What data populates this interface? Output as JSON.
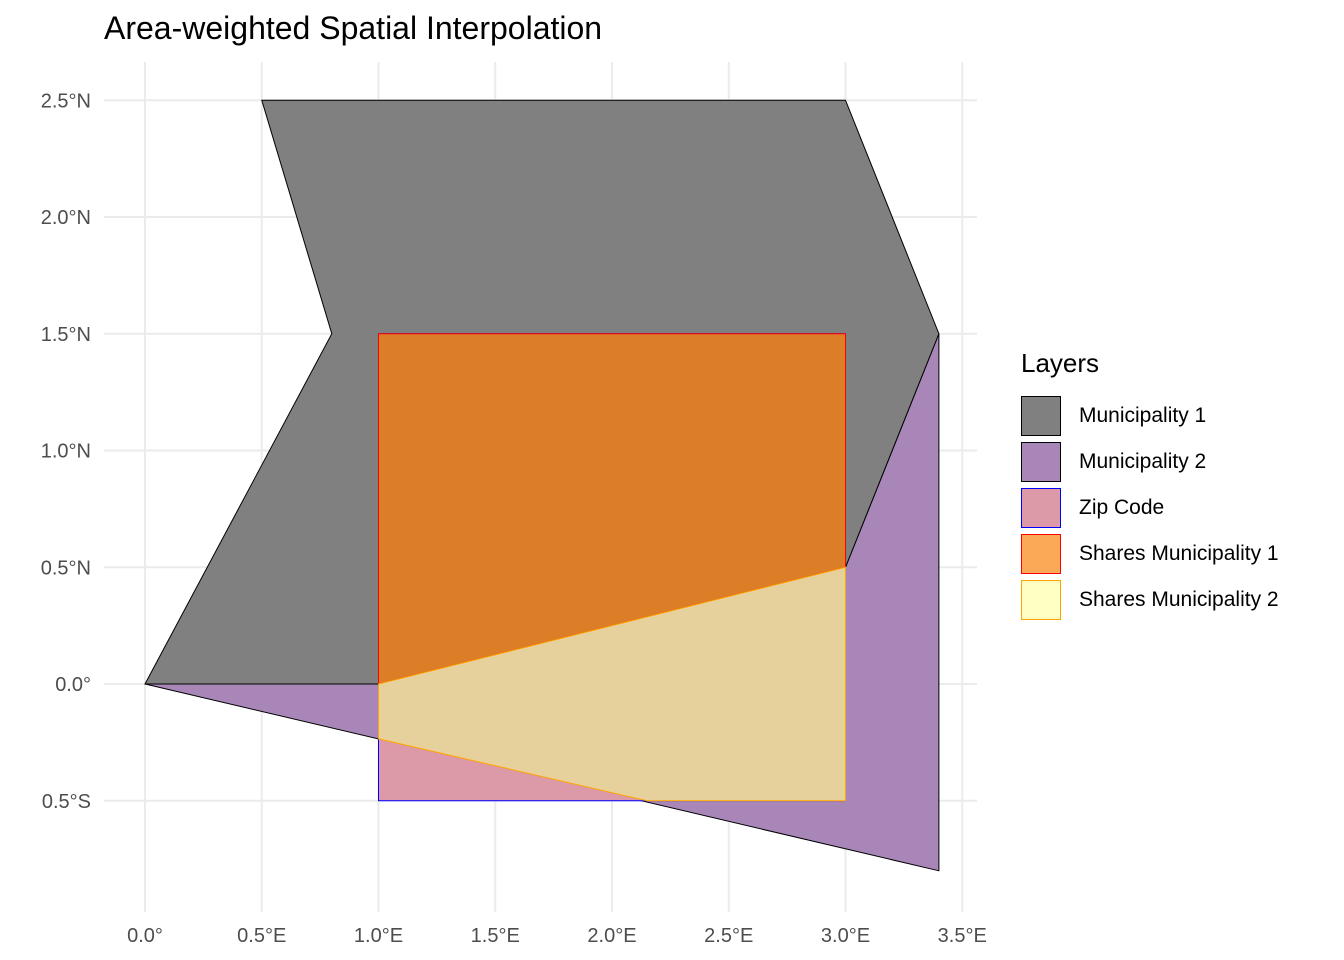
{
  "title": "Area-weighted Spatial Interpolation",
  "chart_data": {
    "type": "map",
    "title": "Area-weighted Spatial Interpolation",
    "xlim": [
      -0.1,
      3.55
    ],
    "ylim": [
      -0.95,
      2.65
    ],
    "x_ticks": [
      {
        "value": 0.0,
        "label": "0.0°"
      },
      {
        "value": 0.5,
        "label": "0.5°E"
      },
      {
        "value": 1.0,
        "label": "1.0°E"
      },
      {
        "value": 1.5,
        "label": "1.5°E"
      },
      {
        "value": 2.0,
        "label": "2.0°E"
      },
      {
        "value": 2.5,
        "label": "2.5°E"
      },
      {
        "value": 3.0,
        "label": "3.0°E"
      },
      {
        "value": 3.5,
        "label": "3.5°E"
      }
    ],
    "y_ticks": [
      {
        "value": -0.5,
        "label": "0.5°S"
      },
      {
        "value": 0.0,
        "label": "0.0°"
      },
      {
        "value": 0.5,
        "label": "0.5°N"
      },
      {
        "value": 1.0,
        "label": "1.0°N"
      },
      {
        "value": 1.5,
        "label": "1.5°N"
      },
      {
        "value": 2.0,
        "label": "2.0°N"
      },
      {
        "value": 2.5,
        "label": "2.5°N"
      }
    ],
    "grid": true,
    "legend_position": "right",
    "legend_title": "Layers",
    "layers": [
      {
        "name": "Municipality 2",
        "fill": "#a887b8",
        "stroke": "#000000",
        "coords": [
          [
            0,
            0
          ],
          [
            1,
            0
          ],
          [
            3,
            0.5
          ],
          [
            3.4,
            1.5
          ],
          [
            3.4,
            -0.8
          ],
          [
            0,
            0
          ]
        ]
      },
      {
        "name": "Municipality 1",
        "fill": "#808080",
        "stroke": "#000000",
        "coords": [
          [
            0,
            0
          ],
          [
            1,
            0
          ],
          [
            3,
            0.5
          ],
          [
            3.4,
            1.5
          ],
          [
            3,
            2.5
          ],
          [
            0.5,
            2.5
          ],
          [
            0.8,
            1.5
          ],
          [
            0,
            0
          ]
        ]
      },
      {
        "name": "Zip Code",
        "fill": "#dc9aa8",
        "stroke": "#0000ff",
        "coords": [
          [
            1,
            -0.5
          ],
          [
            3,
            -0.5
          ],
          [
            3,
            1.5
          ],
          [
            1,
            1.5
          ],
          [
            1,
            -0.5
          ]
        ]
      },
      {
        "name": "Shares Municipality 1",
        "fill": "#dc7e28",
        "stroke": "#ff0000",
        "coords": [
          [
            1,
            0
          ],
          [
            3,
            0.5
          ],
          [
            3,
            1.5
          ],
          [
            1,
            1.5
          ],
          [
            1,
            0
          ]
        ]
      },
      {
        "name": "Shares Municipality 2",
        "fill": "#e6d09c",
        "stroke": "#ffa500",
        "coords": [
          [
            1,
            0
          ],
          [
            3,
            0.5
          ],
          [
            3,
            -0.5
          ],
          [
            2.15,
            -0.5
          ],
          [
            1,
            -0.235
          ],
          [
            1,
            0
          ]
        ]
      }
    ],
    "legend": [
      {
        "label": "Municipality 1",
        "fill": "#808080",
        "stroke": "#000000"
      },
      {
        "label": "Municipality 2",
        "fill": "#a887b8",
        "stroke": "#000000"
      },
      {
        "label": "Zip Code",
        "fill": "#dc9aa8",
        "stroke": "#0000ff"
      },
      {
        "label": "Shares Municipality 1",
        "fill": "#fba957",
        "stroke": "#ff0000"
      },
      {
        "label": "Shares Municipality 2",
        "fill": "#ffffc4",
        "stroke": "#ffa500"
      }
    ]
  }
}
